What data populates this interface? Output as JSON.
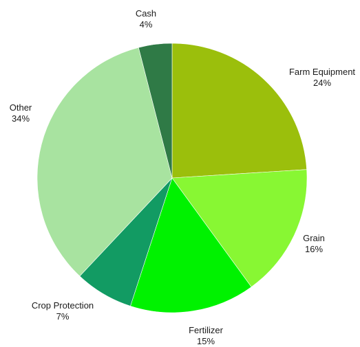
{
  "chart_data": {
    "type": "pie",
    "title": "",
    "start_angle_deg": 0,
    "direction": "clockwise",
    "slices": [
      {
        "name": "Farm Equipment",
        "value": 24,
        "label": "24%",
        "color": "#9bbf0c"
      },
      {
        "name": "Grain",
        "value": 16,
        "label": "16%",
        "color": "#88f733"
      },
      {
        "name": "Fertilizer",
        "value": 15,
        "label": "15%",
        "color": "#00f200"
      },
      {
        "name": "Crop Protection",
        "value": 7,
        "label": "7%",
        "color": "#129b63"
      },
      {
        "name": "Other",
        "value": 34,
        "label": "34%",
        "color": "#a8e3a0"
      },
      {
        "name": "Cash",
        "value": 4,
        "label": "4%",
        "color": "#2f7a46"
      }
    ]
  }
}
